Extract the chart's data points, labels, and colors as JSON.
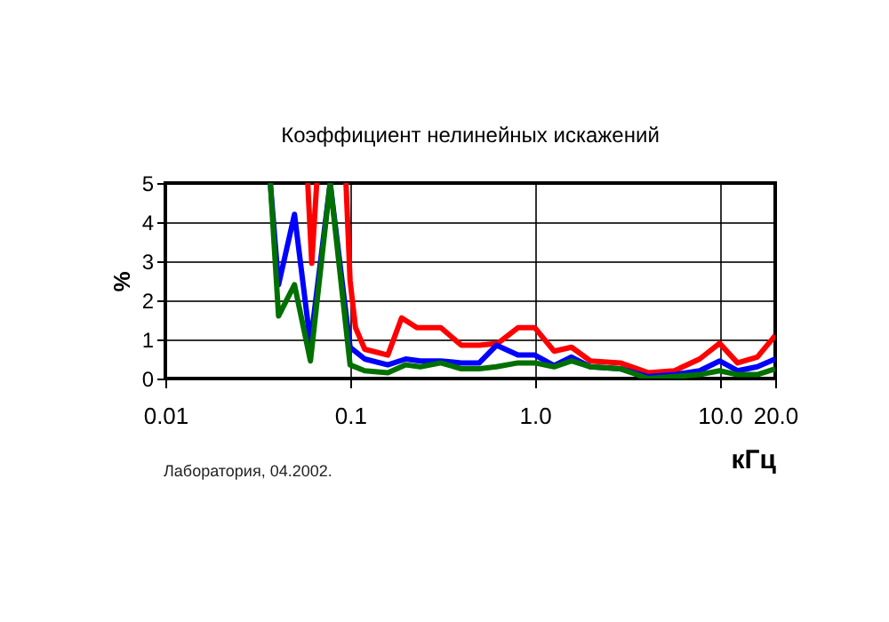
{
  "chart_data": {
    "type": "line",
    "title": "Коэффициент нелинейных искажений",
    "xlabel": "кГц",
    "ylabel": "%",
    "annotations": [
      "Лаборатория, 04.2002."
    ],
    "log": "x",
    "grid": true,
    "xlim": [
      0.01,
      20
    ],
    "ylim": [
      0,
      5
    ],
    "xticks": [
      0.01,
      0.1,
      {
        "value": 1,
        "label": "1.0"
      },
      {
        "value": 10,
        "label": "10.0"
      },
      {
        "value": 20,
        "label": "20.0"
      }
    ],
    "yticks": [
      0,
      1,
      2,
      3,
      4,
      5
    ],
    "series": [
      {
        "color": "#ff0000",
        "x": [
          0.059,
          0.062,
          0.066,
          0.08,
          0.095,
          0.1,
          0.107,
          0.12,
          0.16,
          0.19,
          0.23,
          0.31,
          0.4,
          0.5,
          0.63,
          0.81,
          1,
          1.27,
          1.58,
          2,
          2.9,
          4.1,
          5.7,
          7.8,
          10,
          12.5,
          16,
          20
        ],
        "values": [
          5,
          2.95,
          5,
          null,
          5,
          2.5,
          1.3,
          0.75,
          0.6,
          1.55,
          1.3,
          1.3,
          0.85,
          0.85,
          0.9,
          1.3,
          1.3,
          0.7,
          0.8,
          0.45,
          0.4,
          0.15,
          0.2,
          0.5,
          0.9,
          0.4,
          0.55,
          1.1
        ]
      },
      {
        "color": "#0000ff",
        "x": [
          0.037,
          0.041,
          0.05,
          0.061,
          0.078,
          0.1,
          0.12,
          0.16,
          0.2,
          0.24,
          0.31,
          0.4,
          0.5,
          0.62,
          0.81,
          1,
          1.27,
          1.58,
          2,
          2.9,
          4.1,
          5.7,
          7.8,
          10,
          12.5,
          16,
          20
        ],
        "values": [
          5,
          2.4,
          4.2,
          0.9,
          5,
          0.8,
          0.5,
          0.35,
          0.5,
          0.45,
          0.45,
          0.4,
          0.4,
          0.85,
          0.6,
          0.6,
          0.33,
          0.55,
          0.3,
          0.25,
          0.05,
          0.1,
          0.2,
          0.45,
          0.2,
          0.3,
          0.5
        ]
      },
      {
        "color": "#007000",
        "x": [
          0.037,
          0.041,
          0.05,
          0.061,
          0.078,
          0.1,
          0.12,
          0.16,
          0.2,
          0.24,
          0.31,
          0.4,
          0.5,
          0.62,
          0.81,
          1,
          1.27,
          1.58,
          2,
          2.9,
          4.1,
          5.7,
          7.8,
          10,
          12.5,
          16,
          20
        ],
        "values": [
          5,
          1.6,
          2.4,
          0.45,
          5,
          0.35,
          0.2,
          0.15,
          0.35,
          0.3,
          0.4,
          0.25,
          0.25,
          0.3,
          0.4,
          0.4,
          0.3,
          0.45,
          0.3,
          0.25,
          0,
          0.05,
          0.1,
          0.2,
          0.1,
          0.1,
          0.25
        ]
      }
    ]
  }
}
